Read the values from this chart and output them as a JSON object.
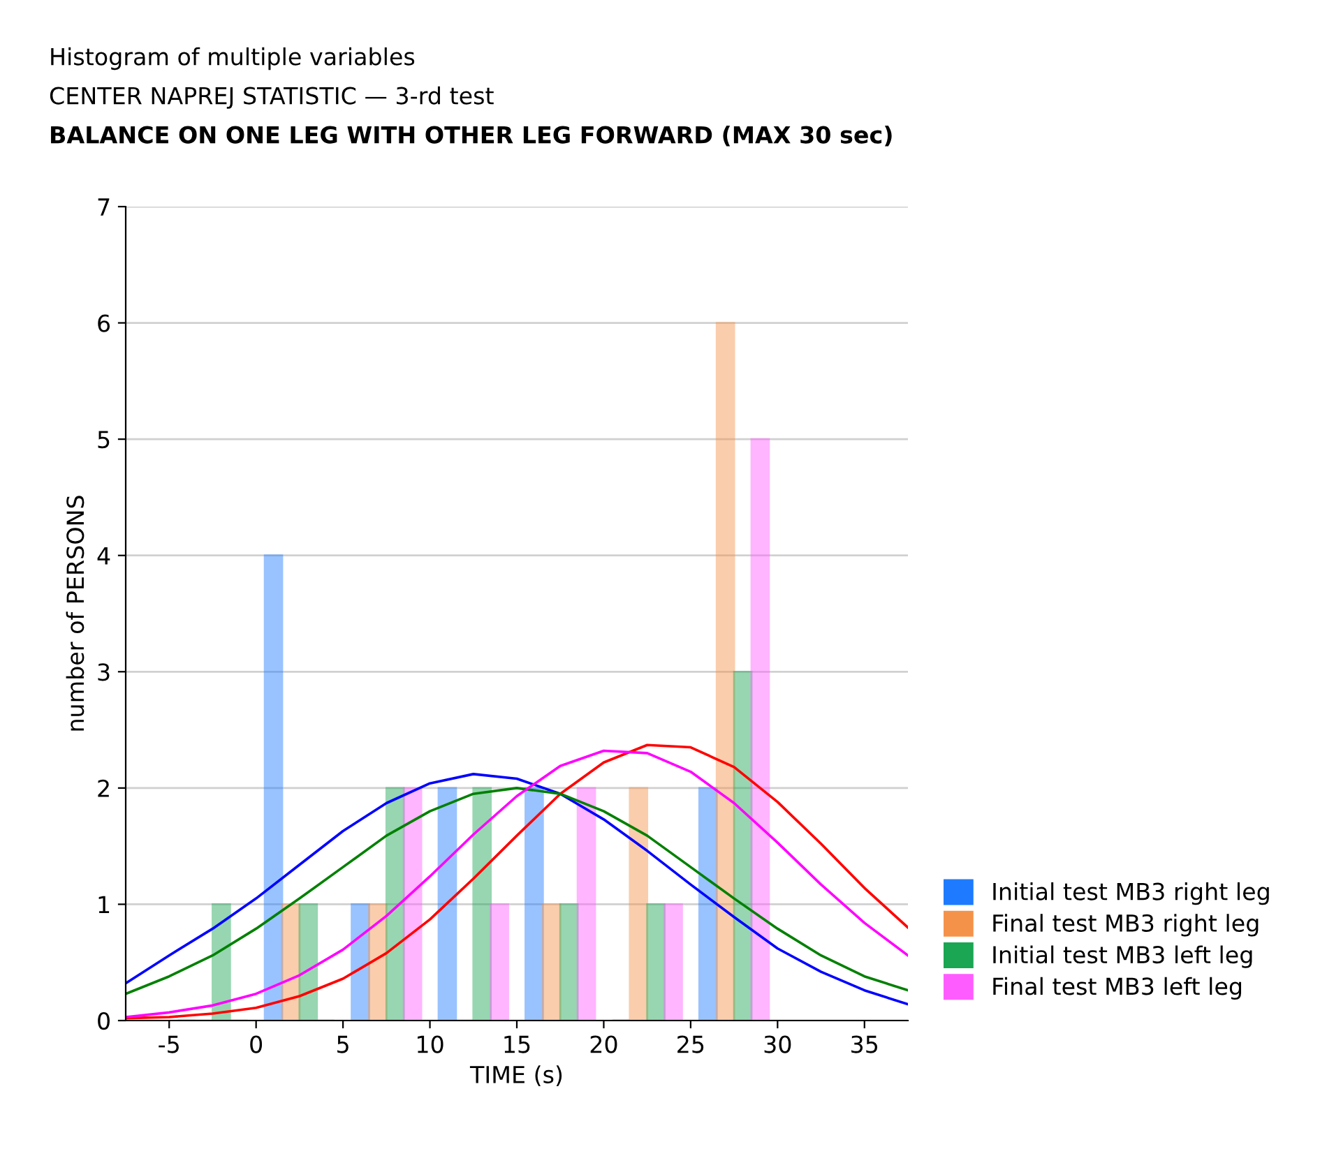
{
  "chart_data": {
    "type": "histogram",
    "title": "Histogram of multiple variables",
    "subtitle": [
      "CENTER NAPREJ STATISTIC — 3-rd test",
      "BALANCE ON ONE LEG WITH OTHER LEG FORWARD (MAX 30 sec)"
    ],
    "xlabel": "TIME (s)",
    "ylabel": "number of PERSONS",
    "bins": [
      -5,
      0,
      5,
      10,
      15,
      20,
      25,
      30
    ],
    "series": [
      {
        "name": "Initial test MB3 right leg",
        "color": "#1e7bff",
        "values": [
          0,
          4,
          1,
          2,
          2,
          0,
          2
        ]
      },
      {
        "name": "Final test MB3 right leg",
        "color": "#f5924a",
        "values": [
          0,
          1,
          1,
          0,
          1,
          2,
          6
        ]
      },
      {
        "name": "Initial test MB3 left leg",
        "color": "#1aa653",
        "values": [
          1,
          1,
          2,
          2,
          1,
          1,
          3
        ]
      },
      {
        "name": "Final test MB3 left leg",
        "color": "#ff5cff",
        "values": [
          0,
          0,
          2,
          1,
          2,
          1,
          5
        ]
      },
      {
        "type": "line",
        "color": "#0000ff",
        "x": [
          -7.5,
          -5,
          -2.5,
          0,
          2.5,
          5,
          7.5,
          10,
          12.5,
          15,
          17.5,
          20,
          22.5,
          25,
          27.5,
          30,
          32.5,
          35,
          37.5
        ],
        "values": [
          0.32,
          0.56,
          0.79,
          1.05,
          1.34,
          1.63,
          1.87,
          2.04,
          2.12,
          2.08,
          1.95,
          1.73,
          1.46,
          1.17,
          0.89,
          0.62,
          0.42,
          0.26,
          0.14
        ]
      },
      {
        "type": "line",
        "color": "#ff0000",
        "x": [
          -7.5,
          -5,
          -2.5,
          0,
          2.5,
          5,
          7.5,
          10,
          12.5,
          15,
          17.5,
          20,
          22.5,
          25,
          27.5,
          30,
          32.5,
          35,
          37.5
        ],
        "values": [
          0.02,
          0.03,
          0.06,
          0.11,
          0.21,
          0.36,
          0.58,
          0.87,
          1.22,
          1.59,
          1.95,
          2.22,
          2.37,
          2.35,
          2.18,
          1.88,
          1.52,
          1.14,
          0.8
        ]
      },
      {
        "type": "line",
        "color": "#008000",
        "x": [
          -7.5,
          -5,
          -2.5,
          0,
          2.5,
          5,
          7.5,
          10,
          12.5,
          15,
          17.5,
          20,
          22.5,
          25,
          27.5,
          30,
          32.5,
          35,
          37.5
        ],
        "values": [
          0.23,
          0.38,
          0.56,
          0.79,
          1.05,
          1.32,
          1.59,
          1.8,
          1.95,
          2.0,
          1.95,
          1.8,
          1.59,
          1.32,
          1.05,
          0.79,
          0.56,
          0.38,
          0.26
        ]
      },
      {
        "type": "line",
        "color": "#ff00ff",
        "x": [
          -7.5,
          -5,
          -2.5,
          0,
          2.5,
          5,
          7.5,
          10,
          12.5,
          15,
          17.5,
          20,
          22.5,
          25,
          27.5,
          30,
          32.5,
          35,
          37.5
        ],
        "values": [
          0.03,
          0.07,
          0.13,
          0.23,
          0.39,
          0.61,
          0.9,
          1.24,
          1.6,
          1.93,
          2.19,
          2.32,
          2.3,
          2.14,
          1.87,
          1.53,
          1.17,
          0.84,
          0.56
        ]
      }
    ],
    "xlim": [
      -7.5,
      37.5
    ],
    "xticks": [
      -5,
      0,
      5,
      10,
      15,
      20,
      25,
      30,
      35
    ],
    "ylim": [
      0,
      7
    ],
    "yticks": [
      0,
      1,
      2,
      3,
      4,
      5,
      6,
      7
    ],
    "grid": "y",
    "legend": "right"
  }
}
